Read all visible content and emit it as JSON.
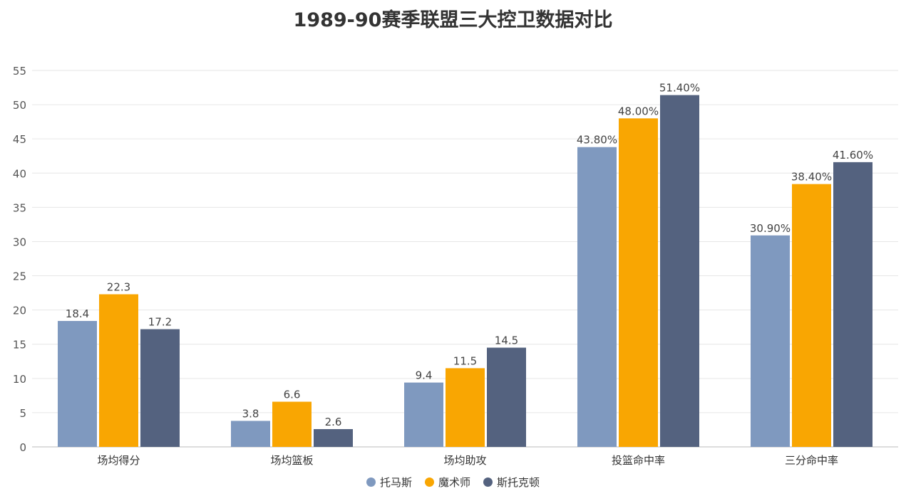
{
  "chart_data": {
    "type": "bar",
    "title": "1989-90赛季联盟三大控卫数据对比",
    "categories": [
      "场均得分",
      "场均篮板",
      "场均助攻",
      "投篮命中率",
      "三分命中率"
    ],
    "series": [
      {
        "name": "托马斯",
        "color": "#7f99bf",
        "values": [
          18.4,
          3.8,
          9.4,
          43.8,
          30.9
        ],
        "labels": [
          "18.4",
          "3.8",
          "9.4",
          "43.80%",
          "30.90%"
        ]
      },
      {
        "name": "魔术师",
        "color": "#f9a602",
        "values": [
          22.3,
          6.6,
          11.5,
          48.0,
          38.4
        ],
        "labels": [
          "22.3",
          "6.6",
          "11.5",
          "48.00%",
          "38.40%"
        ]
      },
      {
        "name": "斯托克顿",
        "color": "#54627f",
        "values": [
          17.2,
          2.6,
          14.5,
          51.4,
          41.6
        ],
        "labels": [
          "17.2",
          "2.6",
          "14.5",
          "51.40%",
          "41.60%"
        ]
      }
    ],
    "yticks": [
      "0",
      "5",
      "10",
      "15",
      "20",
      "25",
      "30",
      "35",
      "40",
      "45",
      "50",
      "55"
    ],
    "ylim": [
      0,
      55
    ],
    "grid": true,
    "legend": "bottom"
  }
}
